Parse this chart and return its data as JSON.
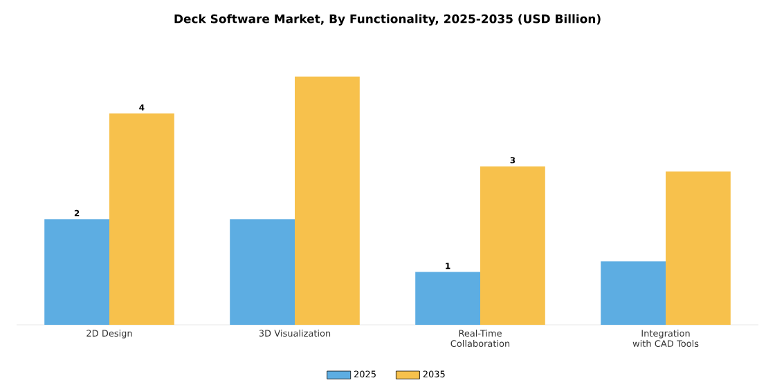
{
  "chart_data": {
    "type": "bar",
    "title": "Deck Software Market, By Functionality, 2025-2035 (USD Billion)",
    "categories": [
      "2D Design",
      "3D Visualization",
      "Real-Time Collaboration",
      "Integration with CAD Tools"
    ],
    "series": [
      {
        "name": "2025",
        "color": "#5dade2",
        "values": [
          2,
          2.0,
          1,
          1.2
        ],
        "value_labels": [
          "2",
          null,
          "1",
          null
        ]
      },
      {
        "name": "2035",
        "color": "#f7c14c",
        "values": [
          4,
          4.7,
          3,
          2.9
        ],
        "value_labels": [
          "4",
          null,
          "3",
          null
        ]
      }
    ],
    "legend": "bottom"
  }
}
